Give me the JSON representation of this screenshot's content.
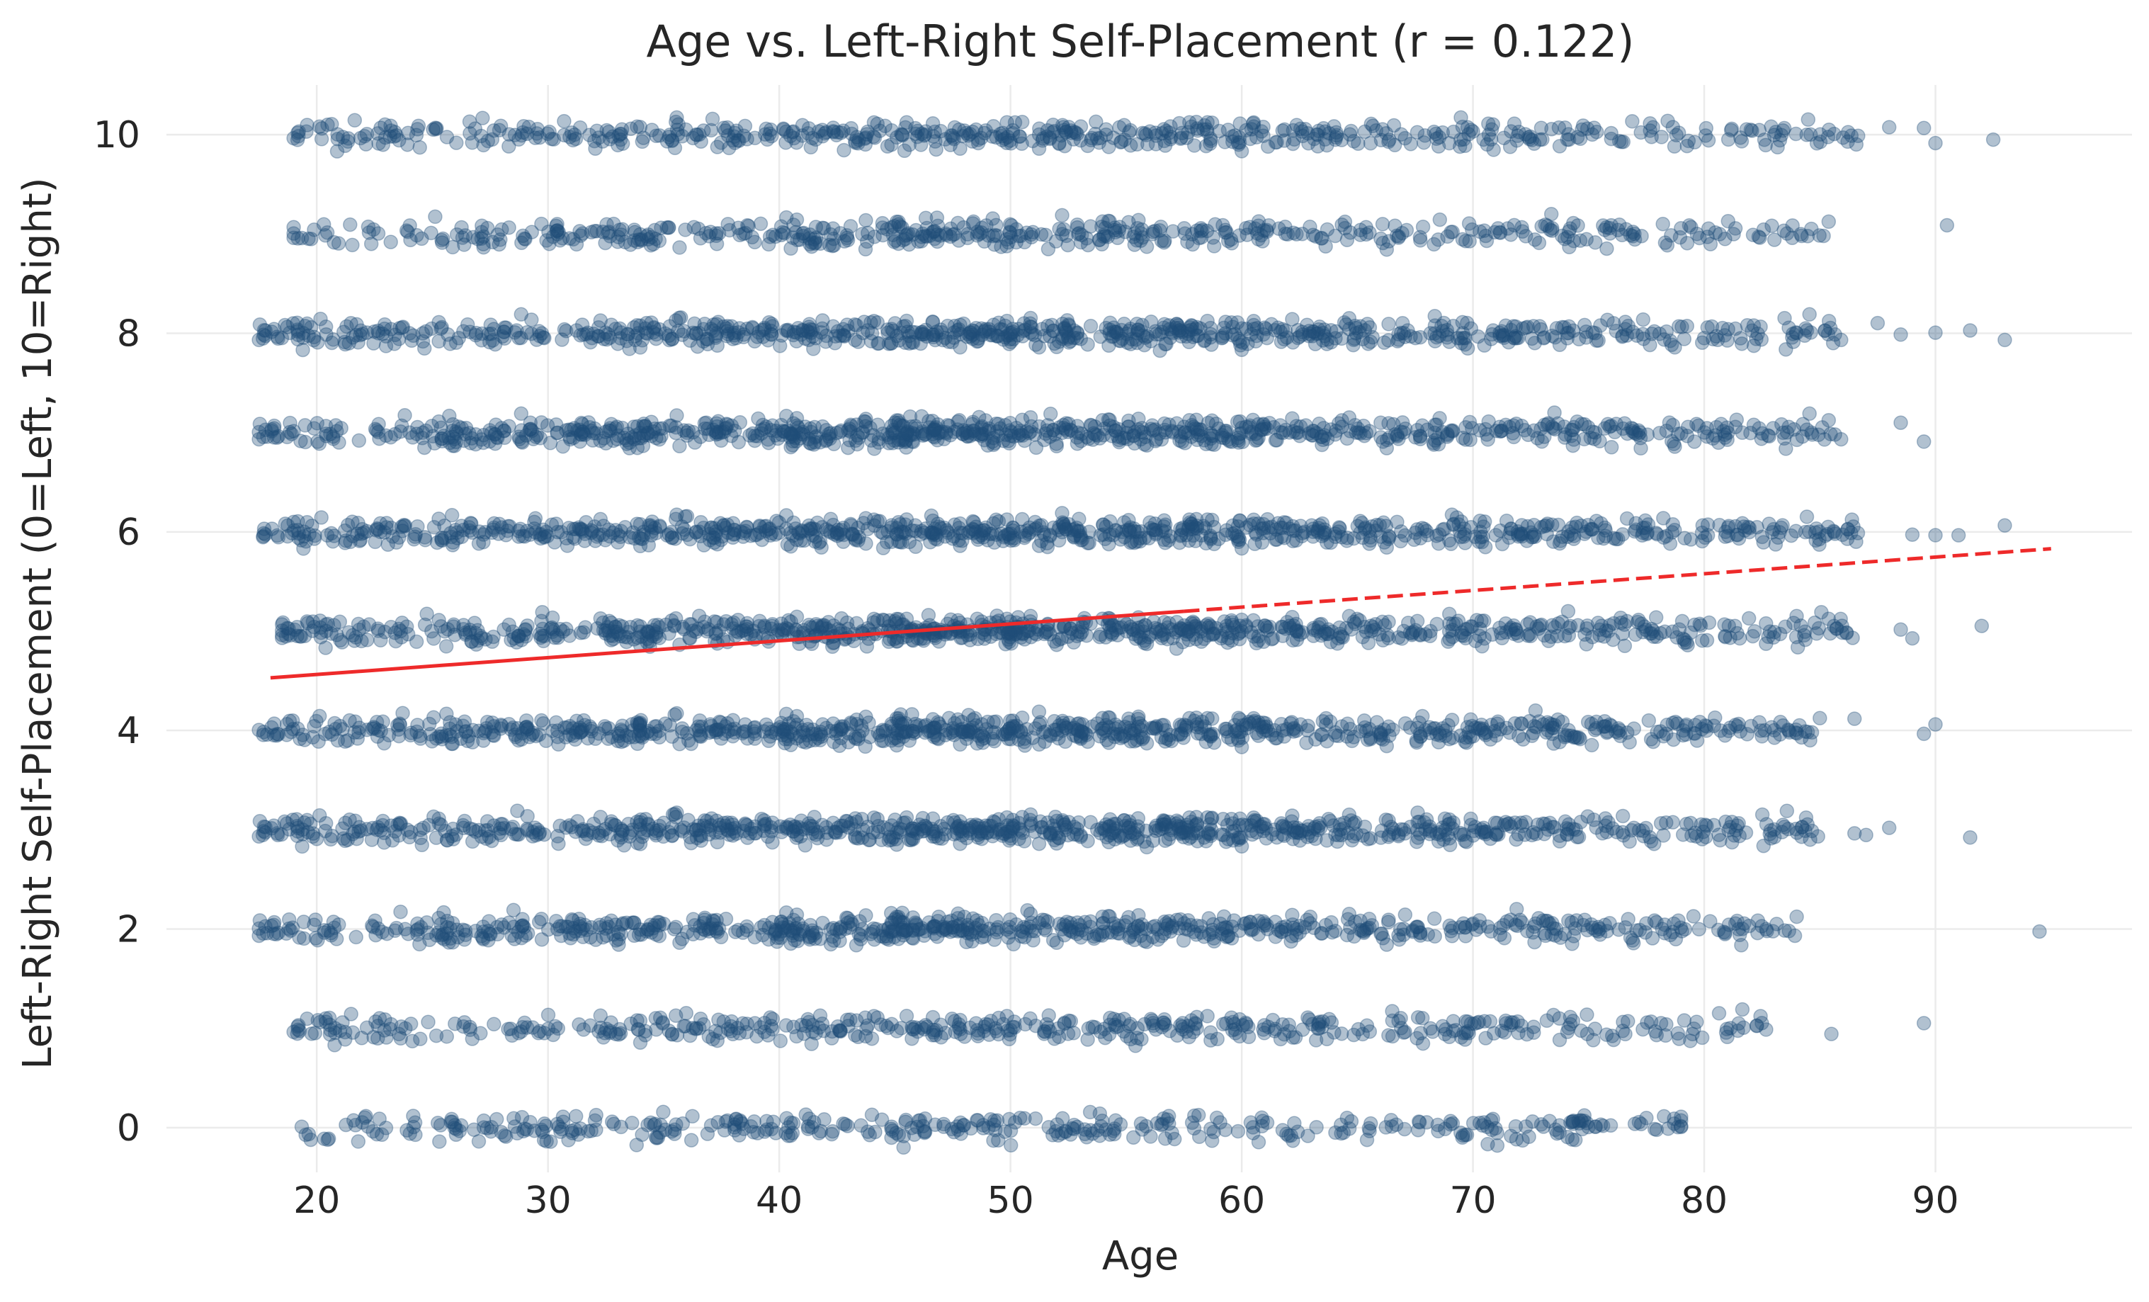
{
  "chart_data": {
    "type": "scatter",
    "title": "Age vs. Left-Right Self-Placement (r = 0.122)",
    "xlabel": "Age",
    "ylabel": "Left-Right Self-Placement (0=Left, 10=Right)",
    "xlim": [
      13.5,
      98.5
    ],
    "ylim": [
      -0.45,
      10.5
    ],
    "xticks": [
      20,
      30,
      40,
      50,
      60,
      70,
      80,
      90
    ],
    "yticks": [
      0,
      2,
      4,
      6,
      8,
      10
    ],
    "grid": true,
    "legend": "none",
    "colors": {
      "points": "#1f4e79",
      "trend": "#ee2a2a",
      "grid": "#ebebeb",
      "text": "#262626"
    },
    "point_alpha": 0.35,
    "correlation_r": 0.122,
    "jitter_points": "approximately 15,000 respondents; integer responses 0-10 jittered vertically by about ±0.15 and ages jittered horizontally",
    "point_distribution": {
      "ages_min": 17.5,
      "ages_max": 95,
      "levels": [
        0,
        1,
        2,
        3,
        4,
        5,
        6,
        7,
        8,
        9,
        10
      ],
      "relative_density_by_level": [
        0.45,
        0.55,
        0.85,
        1.0,
        1.0,
        1.0,
        1.0,
        1.0,
        0.9,
        0.6,
        0.65
      ],
      "density_by_level_and_age": {
        "0": {
          "ages": [
            19,
            79
          ],
          "note": "sparse"
        },
        "1": {
          "ages": [
            19,
            83
          ],
          "outliers": [
            85.5,
            89.5
          ]
        },
        "2": {
          "ages": [
            17.5,
            84
          ],
          "outliers": [
            94.5
          ]
        },
        "3": {
          "ages": [
            17.5,
            85
          ],
          "outliers": [
            86.5,
            87,
            88,
            91.5
          ]
        },
        "4": {
          "ages": [
            17.5,
            85
          ],
          "outliers": [
            86.5,
            89.5,
            90
          ]
        },
        "5": {
          "ages": [
            18.5,
            86.5
          ],
          "outliers": [
            88.5,
            89,
            92
          ]
        },
        "6": {
          "ages": [
            17.5,
            87
          ],
          "outliers": [
            89,
            90,
            91,
            93
          ]
        },
        "7": {
          "ages": [
            17.5,
            86
          ],
          "outliers": [
            88.5,
            89.5
          ]
        },
        "8": {
          "ages": [
            17.5,
            86
          ],
          "outliers": [
            87.5,
            88.5,
            90,
            91.5,
            93
          ]
        },
        "9": {
          "ages": [
            19,
            85.5
          ],
          "outliers": [
            90.5
          ]
        },
        "10": {
          "ages": [
            19,
            87
          ],
          "outliers": [
            88,
            89.5,
            90,
            92.5
          ]
        }
      }
    },
    "series": [
      {
        "type": "line",
        "points": [
          [
            18,
            4.53
          ],
          [
            57.5,
            5.2
          ]
        ],
        "style": "solid"
      },
      {
        "type": "line",
        "points": [
          [
            57.5,
            5.2
          ],
          [
            95,
            5.83
          ]
        ],
        "style": "dashed"
      }
    ]
  }
}
